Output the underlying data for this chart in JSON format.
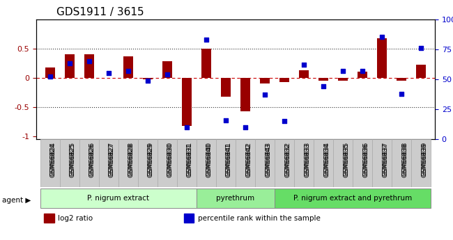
{
  "title": "GDS1911 / 3615",
  "samples": [
    "GSM66824",
    "GSM66825",
    "GSM66826",
    "GSM66827",
    "GSM66828",
    "GSM66829",
    "GSM66830",
    "GSM66831",
    "GSM66840",
    "GSM66841",
    "GSM66842",
    "GSM66843",
    "GSM66832",
    "GSM66833",
    "GSM66834",
    "GSM66835",
    "GSM66836",
    "GSM66837",
    "GSM66838",
    "GSM66839"
  ],
  "log2_ratio": [
    0.18,
    0.4,
    0.4,
    0.0,
    0.36,
    -0.03,
    0.28,
    -0.82,
    0.5,
    -0.32,
    -0.57,
    -0.1,
    -0.08,
    0.13,
    -0.05,
    -0.05,
    0.1,
    0.68,
    -0.05,
    0.22
  ],
  "pct_rank": [
    52,
    63,
    65,
    55,
    57,
    49,
    54,
    10,
    83,
    16,
    10,
    37,
    15,
    62,
    44,
    57,
    57,
    85,
    38,
    76
  ],
  "groups": [
    {
      "label": "P. nigrum extract",
      "start": 0,
      "end": 8,
      "color": "#ccffcc"
    },
    {
      "label": "pyrethrum",
      "start": 8,
      "end": 12,
      "color": "#99ee99"
    },
    {
      "label": "P. nigrum extract and pyrethrum",
      "start": 12,
      "end": 20,
      "color": "#66dd66"
    }
  ],
  "bar_color": "#990000",
  "dot_color": "#0000cc",
  "zero_line_color": "#cc0000",
  "dotted_line_color": "#333333",
  "bg_color": "#ffffff",
  "ylim_left": [
    -1.05,
    1.0
  ],
  "ylim_right": [
    0,
    100
  ],
  "ylabel_left_ticks": [
    -1,
    -0.5,
    0,
    0.5
  ],
  "ylabel_right_ticks": [
    0,
    25,
    50,
    75,
    100
  ],
  "legend_items": [
    {
      "label": "log2 ratio",
      "color": "#990000"
    },
    {
      "label": "percentile rank within the sample",
      "color": "#0000cc"
    }
  ]
}
